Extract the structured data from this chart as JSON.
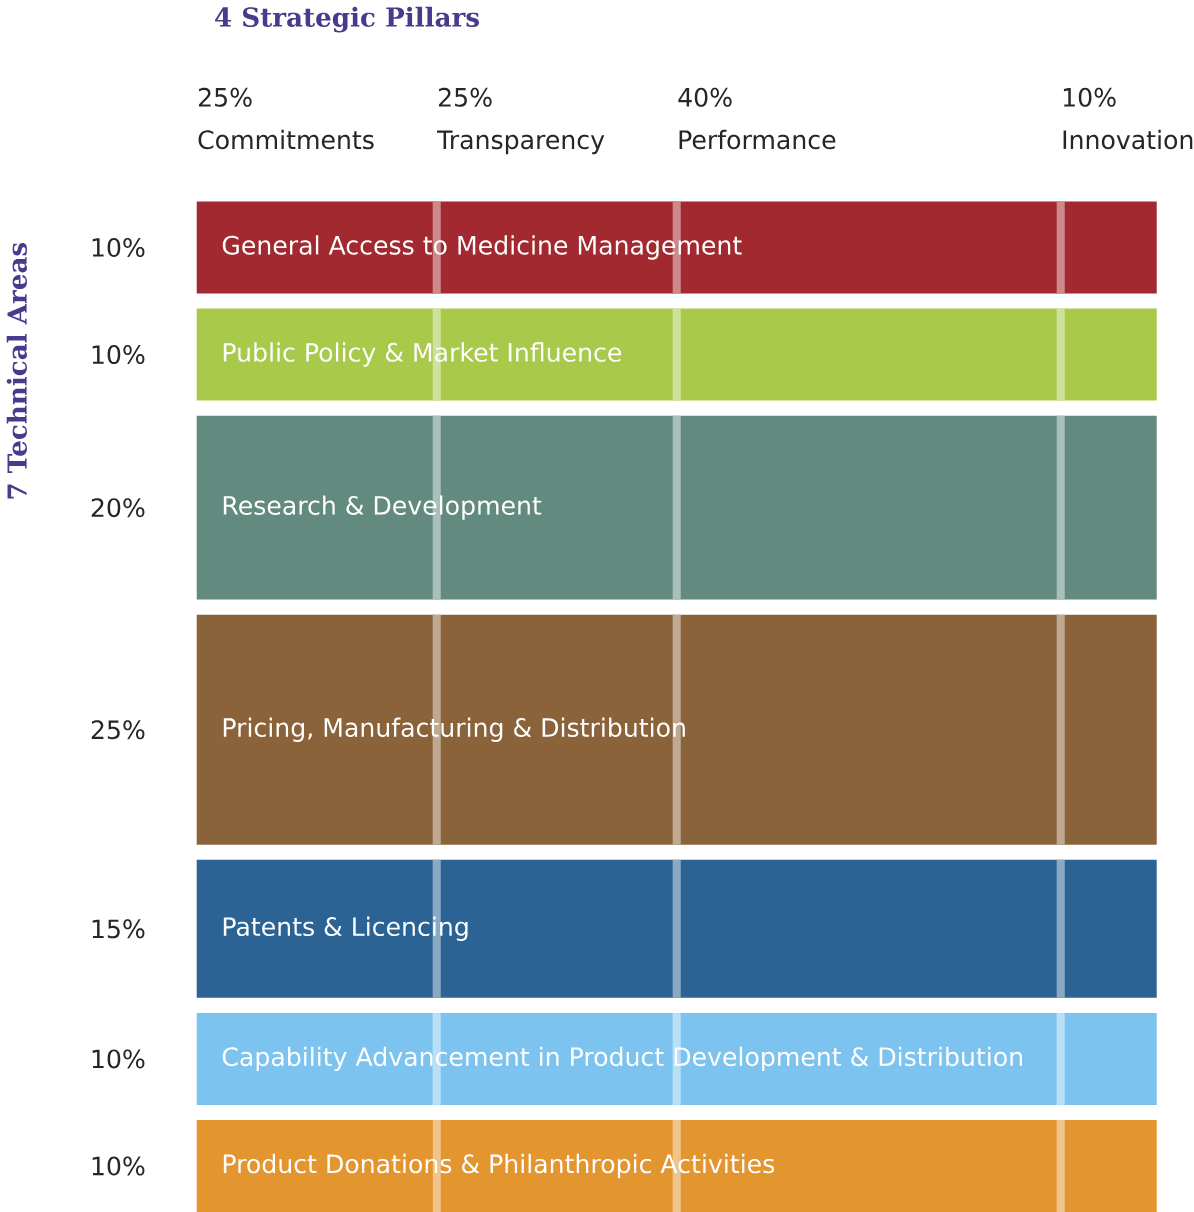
{
  "chart_data": [
    {
      "type": "other",
      "title": "4 Strategic Pillars",
      "categories": [
        "Commitments",
        "Transparency",
        "Performance",
        "Innovation"
      ],
      "values": [
        25,
        25,
        40,
        10
      ],
      "value_labels": [
        "25%",
        "25%",
        "40%",
        "10%"
      ]
    },
    {
      "type": "other",
      "ylabel": "7 Technical Areas",
      "categories": [
        "General Access to Medicine Management",
        "Public Policy & Market Influence",
        "Research & Development",
        "Pricing, Manufacturing & Distribution",
        "Patents & Licencing",
        "Capability Advancement in Product Development & Distribution",
        "Product Donations & Philanthropic Activities"
      ],
      "values": [
        10,
        10,
        20,
        25,
        15,
        10,
        10
      ],
      "value_labels": [
        "10%",
        "10%",
        "20%",
        "25%",
        "15%",
        "10%",
        "10%"
      ],
      "colors": [
        "#a1292f",
        "#a8c94a",
        "#628a7f",
        "#8b633a",
        "#2b6494",
        "#7cc4ef",
        "#e39530"
      ]
    }
  ]
}
